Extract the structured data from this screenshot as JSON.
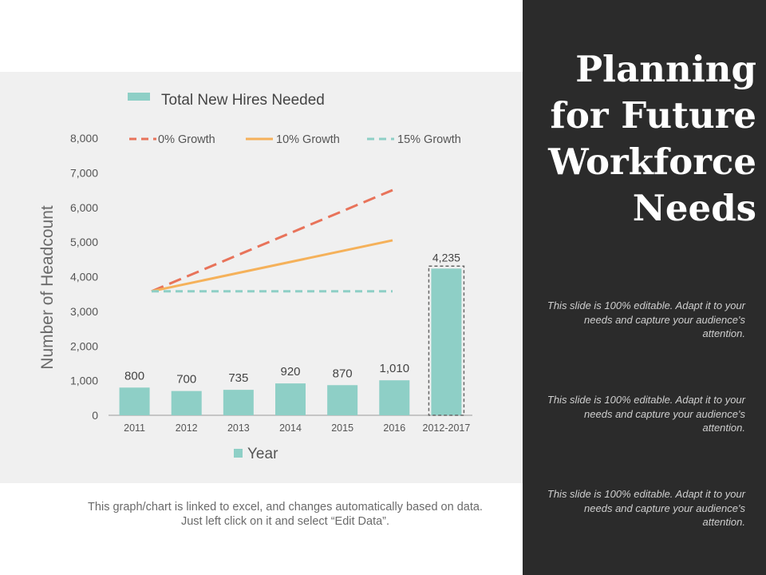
{
  "slide": {
    "title_lines": [
      "Planning",
      "for Future",
      "Workforce",
      "Needs"
    ],
    "notes": [
      "This slide is 100% editable. Adapt it to your needs and capture your audience's attention.",
      "This slide is 100% editable. Adapt it to your needs and capture your audience's attention.",
      "This slide is 100% editable. Adapt it to your needs and capture your audience's attention."
    ],
    "footnote": "This graph/chart is linked to excel, and changes automatically based on data. Just left click on it and select “Edit Data”."
  },
  "chart_data": {
    "type": "bar",
    "categories": [
      "2011",
      "2012",
      "2013",
      "2014",
      "2015",
      "2016",
      "2012-2017"
    ],
    "series": [
      {
        "name": "Total New Hires Needed",
        "type": "bar",
        "color": "#8ecfc6",
        "values": [
          800,
          700,
          735,
          920,
          870,
          1010,
          4235
        ],
        "labels": [
          "800",
          "700",
          "735",
          "920",
          "870",
          "1,010",
          "4,235"
        ]
      }
    ],
    "lines": [
      {
        "name": "0% Growth",
        "color": "#e8735a",
        "style": "dashed",
        "start": 3580,
        "end": 6500
      },
      {
        "name": "10% Growth",
        "color": "#f5b15a",
        "style": "solid",
        "start": 3580,
        "end": 5050
      },
      {
        "name": "15% Growth",
        "color": "#8ecfc6",
        "style": "dashed",
        "start": 3580,
        "end": 3580
      }
    ],
    "ylabel": "Number of Headcount",
    "xlabel": "Year",
    "ylim": [
      0,
      8000
    ],
    "yticks": [
      "0",
      "1,000",
      "2,000",
      "3,000",
      "4,000",
      "5,000",
      "6,000",
      "7,000",
      "8,000"
    ],
    "grid": false,
    "legend": "top"
  }
}
